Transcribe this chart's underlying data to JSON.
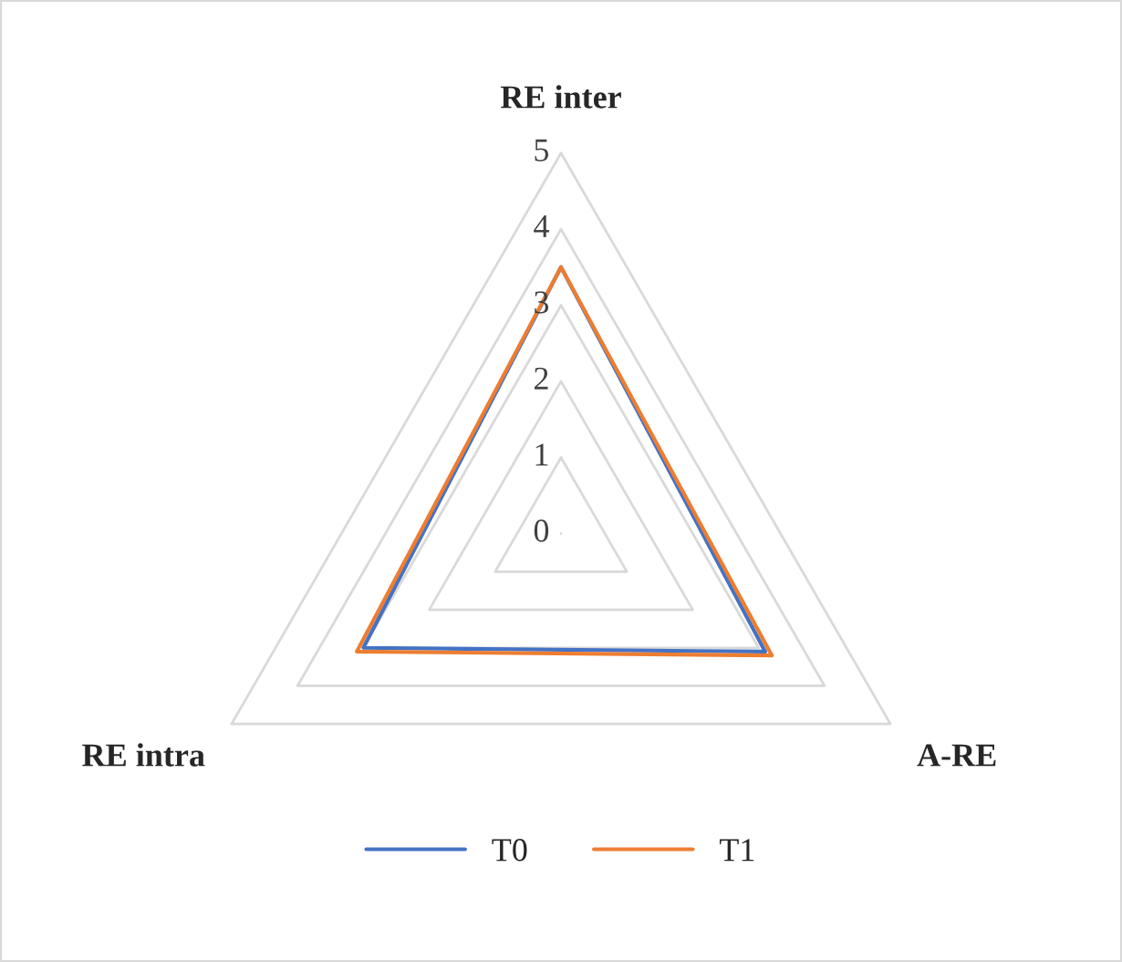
{
  "chart_data": {
    "type": "radar",
    "categories": [
      "RE inter",
      "A-RE",
      "RE intra"
    ],
    "series": [
      {
        "name": "T0",
        "color": "#4472c4",
        "values": [
          3.5,
          3.1,
          3.0
        ]
      },
      {
        "name": "T1",
        "color": "#ed7d31",
        "values": [
          3.5,
          3.2,
          3.1
        ]
      }
    ],
    "ylim": [
      0,
      5
    ],
    "yticks": [
      0,
      1,
      2,
      3,
      4,
      5
    ],
    "grid": true,
    "legend": "bottom",
    "line_style": "solid",
    "marker": "none"
  }
}
